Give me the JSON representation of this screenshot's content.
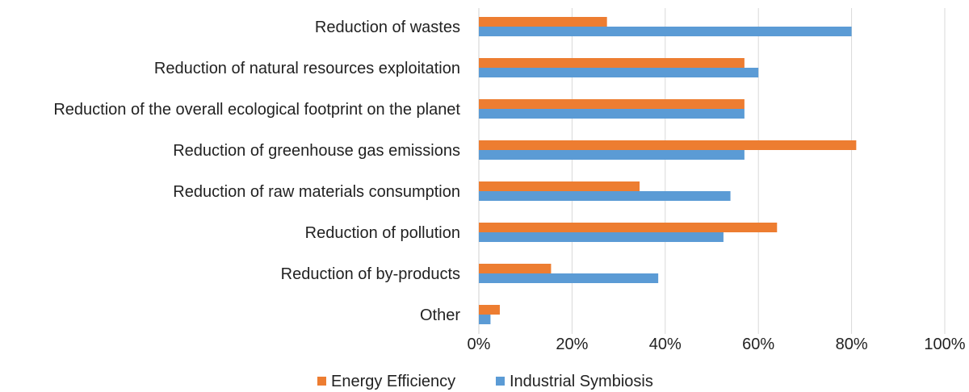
{
  "chart_data": {
    "type": "bar",
    "orientation": "horizontal",
    "categories": [
      "Reduction of wastes",
      "Reduction of natural resources exploitation",
      "Reduction of the overall ecological footprint on the planet",
      "Reduction of greenhouse gas emissions",
      "Reduction of raw materials consumption",
      "Reduction of  pollution",
      "Reduction of by-products",
      "Other"
    ],
    "series": [
      {
        "name": "Energy Efficiency",
        "color": "#ED7D31",
        "values": [
          27.5,
          57,
          57,
          81,
          34.5,
          64,
          15.5,
          4.5
        ]
      },
      {
        "name": "Industrial Symbiosis",
        "color": "#5B9BD5",
        "values": [
          80,
          60,
          57,
          57,
          54,
          52.5,
          38.5,
          2.5
        ]
      }
    ],
    "xlim": [
      0,
      100
    ],
    "x_ticks": [
      0,
      20,
      40,
      60,
      80,
      100
    ],
    "x_tick_labels": [
      "0%",
      "20%",
      "40%",
      "60%",
      "80%",
      "100%"
    ],
    "grid": "vertical",
    "legend_position": "bottom",
    "title": "",
    "xlabel": "",
    "ylabel": ""
  }
}
